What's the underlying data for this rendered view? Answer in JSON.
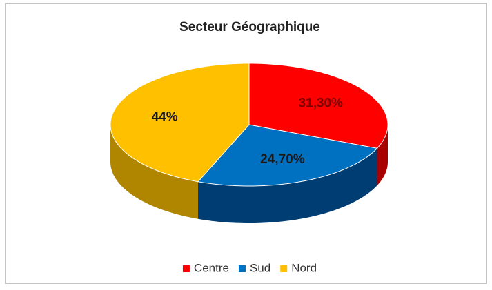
{
  "chart_data": {
    "type": "pie3d",
    "title": "Secteur Géographique",
    "categories": [
      "Centre",
      "Sud",
      "Nord"
    ],
    "values": [
      31.3,
      24.7,
      44
    ],
    "value_labels": [
      "31,30%",
      "24,70%",
      "44%"
    ],
    "colors": [
      "#ff0000",
      "#0070c0",
      "#ffc000"
    ],
    "side_colors": [
      "#a80000",
      "#003d73",
      "#b08500"
    ],
    "legend": "bottom"
  }
}
